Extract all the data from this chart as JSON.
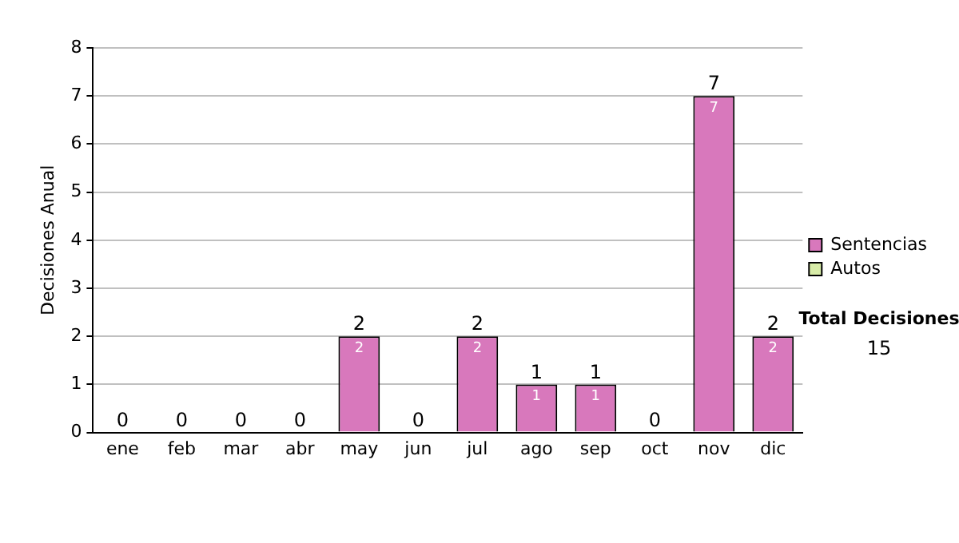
{
  "chart_data": {
    "type": "bar",
    "ylabel": "Decisiones Anual",
    "categories": [
      "ene",
      "feb",
      "mar",
      "abr",
      "may",
      "jun",
      "jul",
      "ago",
      "sep",
      "oct",
      "nov",
      "dic"
    ],
    "series": [
      {
        "name": "Sentencias",
        "color": "#d878bc",
        "values": [
          0,
          0,
          0,
          0,
          2,
          0,
          2,
          1,
          1,
          0,
          7,
          2
        ],
        "value_labels": [
          null,
          null,
          null,
          null,
          "2",
          null,
          "2",
          "1",
          "1",
          null,
          "7",
          "2"
        ]
      },
      {
        "name": "Autos",
        "color": "#d8eca8",
        "values": [
          0,
          0,
          0,
          0,
          0,
          0,
          0,
          0,
          0,
          0,
          0,
          0
        ]
      }
    ],
    "stacked": true,
    "totals": [
      "0",
      "0",
      "0",
      "0",
      "2",
      "0",
      "2",
      "1",
      "1",
      "0",
      "7",
      "2"
    ],
    "ylim": [
      0,
      8
    ],
    "yticks": [
      0,
      1,
      2,
      3,
      4,
      5,
      6,
      7,
      8
    ],
    "grid": "y",
    "legend": "right",
    "annotations": [
      "Total Decisiones",
      "15"
    ]
  }
}
